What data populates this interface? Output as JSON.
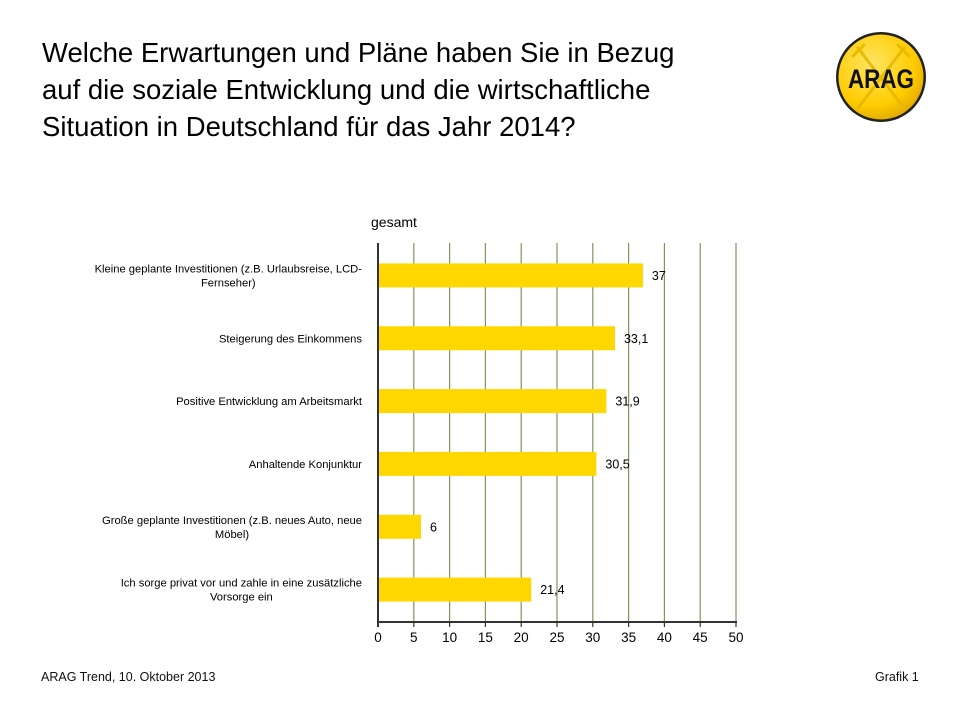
{
  "slide": {
    "title_lines": [
      "Welche Erwartungen und Pläne haben Sie in Bezug",
      "auf die soziale Entwicklung und die wirtschaftliche",
      "Situation in Deutschland für das Jahr 2014?"
    ],
    "logo": {
      "icon": "arag-logo-icon",
      "text": "ARAG",
      "color": "#FFD400"
    },
    "footer_left": "ARAG Trend, 10. Oktober 2013",
    "footer_right": "Grafik 1"
  },
  "chart_data": {
    "type": "bar",
    "orientation": "horizontal",
    "title": "",
    "series_label": "gesamt",
    "categories": [
      [
        "Kleine geplante Investitionen (z.B. Urlaubsreise, LCD-",
        "Fernseher)"
      ],
      [
        "Steigerung des Einkommens"
      ],
      [
        "Positive Entwicklung am Arbeitsmarkt"
      ],
      [
        "Anhaltende Konjunktur"
      ],
      [
        "Große geplante Investitionen (z.B. neues Auto, neue",
        "Möbel)"
      ],
      [
        "Ich sorge privat vor und zahle in eine zusätzliche",
        "Vorsorge ein"
      ]
    ],
    "series": [
      {
        "name": "gesamt",
        "values": [
          37,
          33.1,
          31.9,
          30.5,
          6,
          21.4
        ],
        "value_labels": [
          "37",
          "33,1",
          "31,9",
          "30,5",
          "6",
          "21,4"
        ],
        "color": "#FFD700"
      }
    ],
    "xlabel": "",
    "ylabel": "",
    "xlim": [
      0,
      50
    ],
    "xticks": [
      0,
      5,
      10,
      15,
      20,
      25,
      30,
      35,
      40,
      45,
      50
    ],
    "grid": true,
    "grid_color": "#7A9A5A",
    "axis_color": "#333333",
    "legend": "none"
  }
}
